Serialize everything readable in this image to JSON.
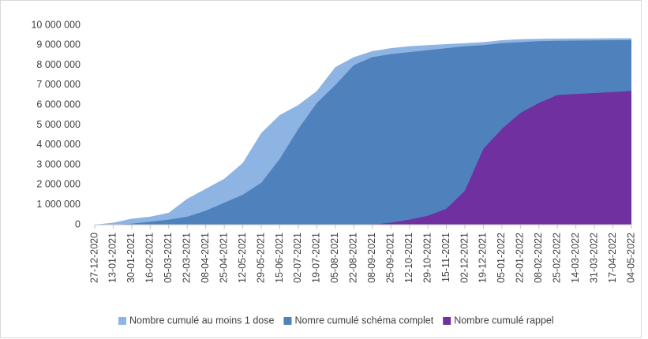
{
  "chart_data": {
    "type": "area",
    "categories": [
      "27-12-2020",
      "13-01-2021",
      "30-01-2021",
      "16-02-2021",
      "05-03-2021",
      "22-03-2021",
      "08-04-2021",
      "25-04-2021",
      "12-05-2021",
      "29-05-2021",
      "15-06-2021",
      "02-07-2021",
      "19-07-2021",
      "05-08-2021",
      "22-08-2021",
      "08-09-2021",
      "25-09-2021",
      "12-10-2021",
      "29-10-2021",
      "15-11-2021",
      "02-12-2021",
      "19-12-2021",
      "05-01-2022",
      "22-01-2022",
      "08-02-2022",
      "25-02-2022",
      "14-03-2022",
      "31-03-2022",
      "17-04-2022",
      "04-05-2022"
    ],
    "series": [
      {
        "name": "Nombre cumulé au moins 1 dose",
        "color": "#8eb4e3",
        "values": [
          0,
          100000,
          300000,
          400000,
          600000,
          1300000,
          1800000,
          2300000,
          3100000,
          4600000,
          5500000,
          6000000,
          6700000,
          7900000,
          8400000,
          8700000,
          8850000,
          8950000,
          9000000,
          9050000,
          9100000,
          9150000,
          9250000,
          9300000,
          9320000,
          9330000,
          9340000,
          9340000,
          9350000,
          9350000
        ]
      },
      {
        "name": "Nomre cumulé schéma complet",
        "color": "#4f81bd",
        "values": [
          0,
          0,
          50000,
          150000,
          250000,
          400000,
          700000,
          1100000,
          1500000,
          2100000,
          3300000,
          4800000,
          6100000,
          7000000,
          8000000,
          8400000,
          8550000,
          8650000,
          8750000,
          8850000,
          8950000,
          9000000,
          9100000,
          9150000,
          9200000,
          9220000,
          9230000,
          9240000,
          9250000,
          9260000
        ]
      },
      {
        "name": "Nombre cumulé rappel",
        "color": "#7030a0",
        "values": [
          0,
          0,
          0,
          0,
          0,
          0,
          0,
          0,
          0,
          0,
          0,
          0,
          0,
          0,
          0,
          0,
          100000,
          250000,
          450000,
          800000,
          1700000,
          3800000,
          4800000,
          5600000,
          6100000,
          6500000,
          6550000,
          6600000,
          6650000,
          6700000
        ]
      }
    ],
    "ylim": [
      0,
      10000000
    ],
    "yticks": [
      0,
      {
        "value": 1000000,
        "label": "1 000 000"
      },
      {
        "value": 2000000,
        "label": "2 000 000"
      },
      {
        "value": 3000000,
        "label": "3 000 000"
      },
      {
        "value": 4000000,
        "label": "4 000 000"
      },
      {
        "value": 5000000,
        "label": "5 000 000"
      },
      {
        "value": 6000000,
        "label": "6 000 000"
      },
      {
        "value": 7000000,
        "label": "7 000 000"
      },
      {
        "value": 8000000,
        "label": "8 000 000"
      },
      {
        "value": 9000000,
        "label": "9 000 000"
      },
      {
        "value": 10000000,
        "label": "10 000 000"
      }
    ],
    "legend": "bottom"
  }
}
